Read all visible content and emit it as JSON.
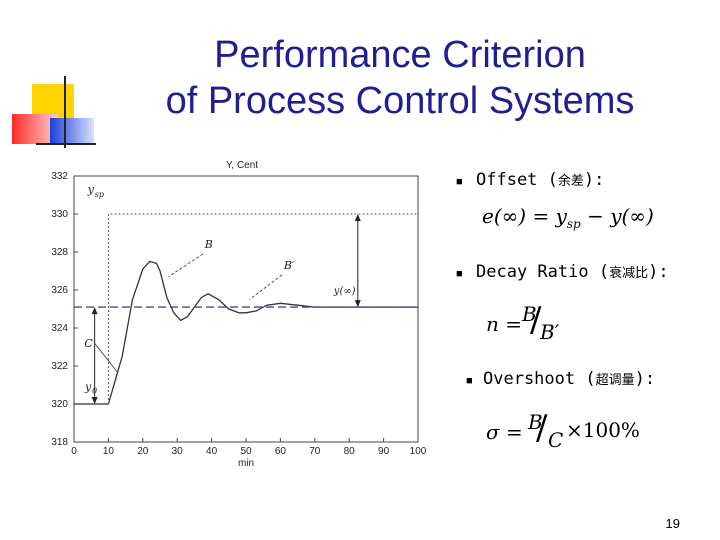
{
  "slide": {
    "title_line1": "Performance Criterion",
    "title_line2": "of Process Control Systems",
    "page_number": "19",
    "colors": {
      "title": "#1f1f8f",
      "deco_yellow": "#ffd400",
      "deco_red": "#ff3b3b",
      "deco_blue": "#1c3fd8"
    }
  },
  "bullets": [
    {
      "label": "Offset",
      "chinese": "余差",
      "suffix": "):"
    },
    {
      "label": "Decay Ratio",
      "chinese": "衰减比",
      "suffix": "):"
    },
    {
      "label": "Overshoot",
      "chinese": "超调量",
      "suffix": "):"
    }
  ],
  "formulas": {
    "offset": "e(∞) = y",
    "offset_sub": "sp",
    "offset_tail": "− y(∞)",
    "decay_lhs": "n =",
    "decay_num": "B",
    "decay_den": "B′",
    "overshoot_lhs": "σ =",
    "overshoot_num": "B",
    "overshoot_den": "C",
    "overshoot_tail": "×100%"
  },
  "chart_data": {
    "type": "line",
    "title": "Y, Cent",
    "xlabel": "min",
    "ylabel": "",
    "xlim": [
      0,
      100
    ],
    "ylim": [
      318,
      332
    ],
    "xticks": [
      0,
      10,
      20,
      30,
      40,
      50,
      60,
      70,
      80,
      90,
      100
    ],
    "yticks": [
      318,
      320,
      322,
      324,
      326,
      328,
      330,
      332
    ],
    "grid": false,
    "series": [
      {
        "x": [
          0,
          10,
          14,
          17,
          20,
          22,
          24,
          25,
          26,
          27,
          29,
          31,
          33,
          35,
          37,
          39,
          42,
          45,
          48,
          50,
          53,
          56,
          60,
          65,
          70,
          80,
          90,
          100
        ],
        "y": [
          320.0,
          320.0,
          322.5,
          325.5,
          327.1,
          327.5,
          327.4,
          327.0,
          326.3,
          325.6,
          324.8,
          324.4,
          324.6,
          325.1,
          325.6,
          325.8,
          325.5,
          325.0,
          324.8,
          324.8,
          324.9,
          325.2,
          325.3,
          325.2,
          325.1,
          325.1,
          325.1,
          325.1
        ],
        "color": "#333333"
      },
      {
        "x": [
          0,
          100
        ],
        "y": [
          325.1,
          325.1
        ],
        "color": "#3a4aa8",
        "style": "dashed"
      }
    ],
    "annotations": {
      "setpoint_label": "y",
      "setpoint_sub": "sp",
      "setpoint_value": 330,
      "steady_label": "y(∞)",
      "steady_value": 325.1,
      "initial_label": "y",
      "initial_sub": "0",
      "initial_value": 320,
      "B_label": "B",
      "Bprime_label": "B′",
      "C_label": "C"
    }
  }
}
